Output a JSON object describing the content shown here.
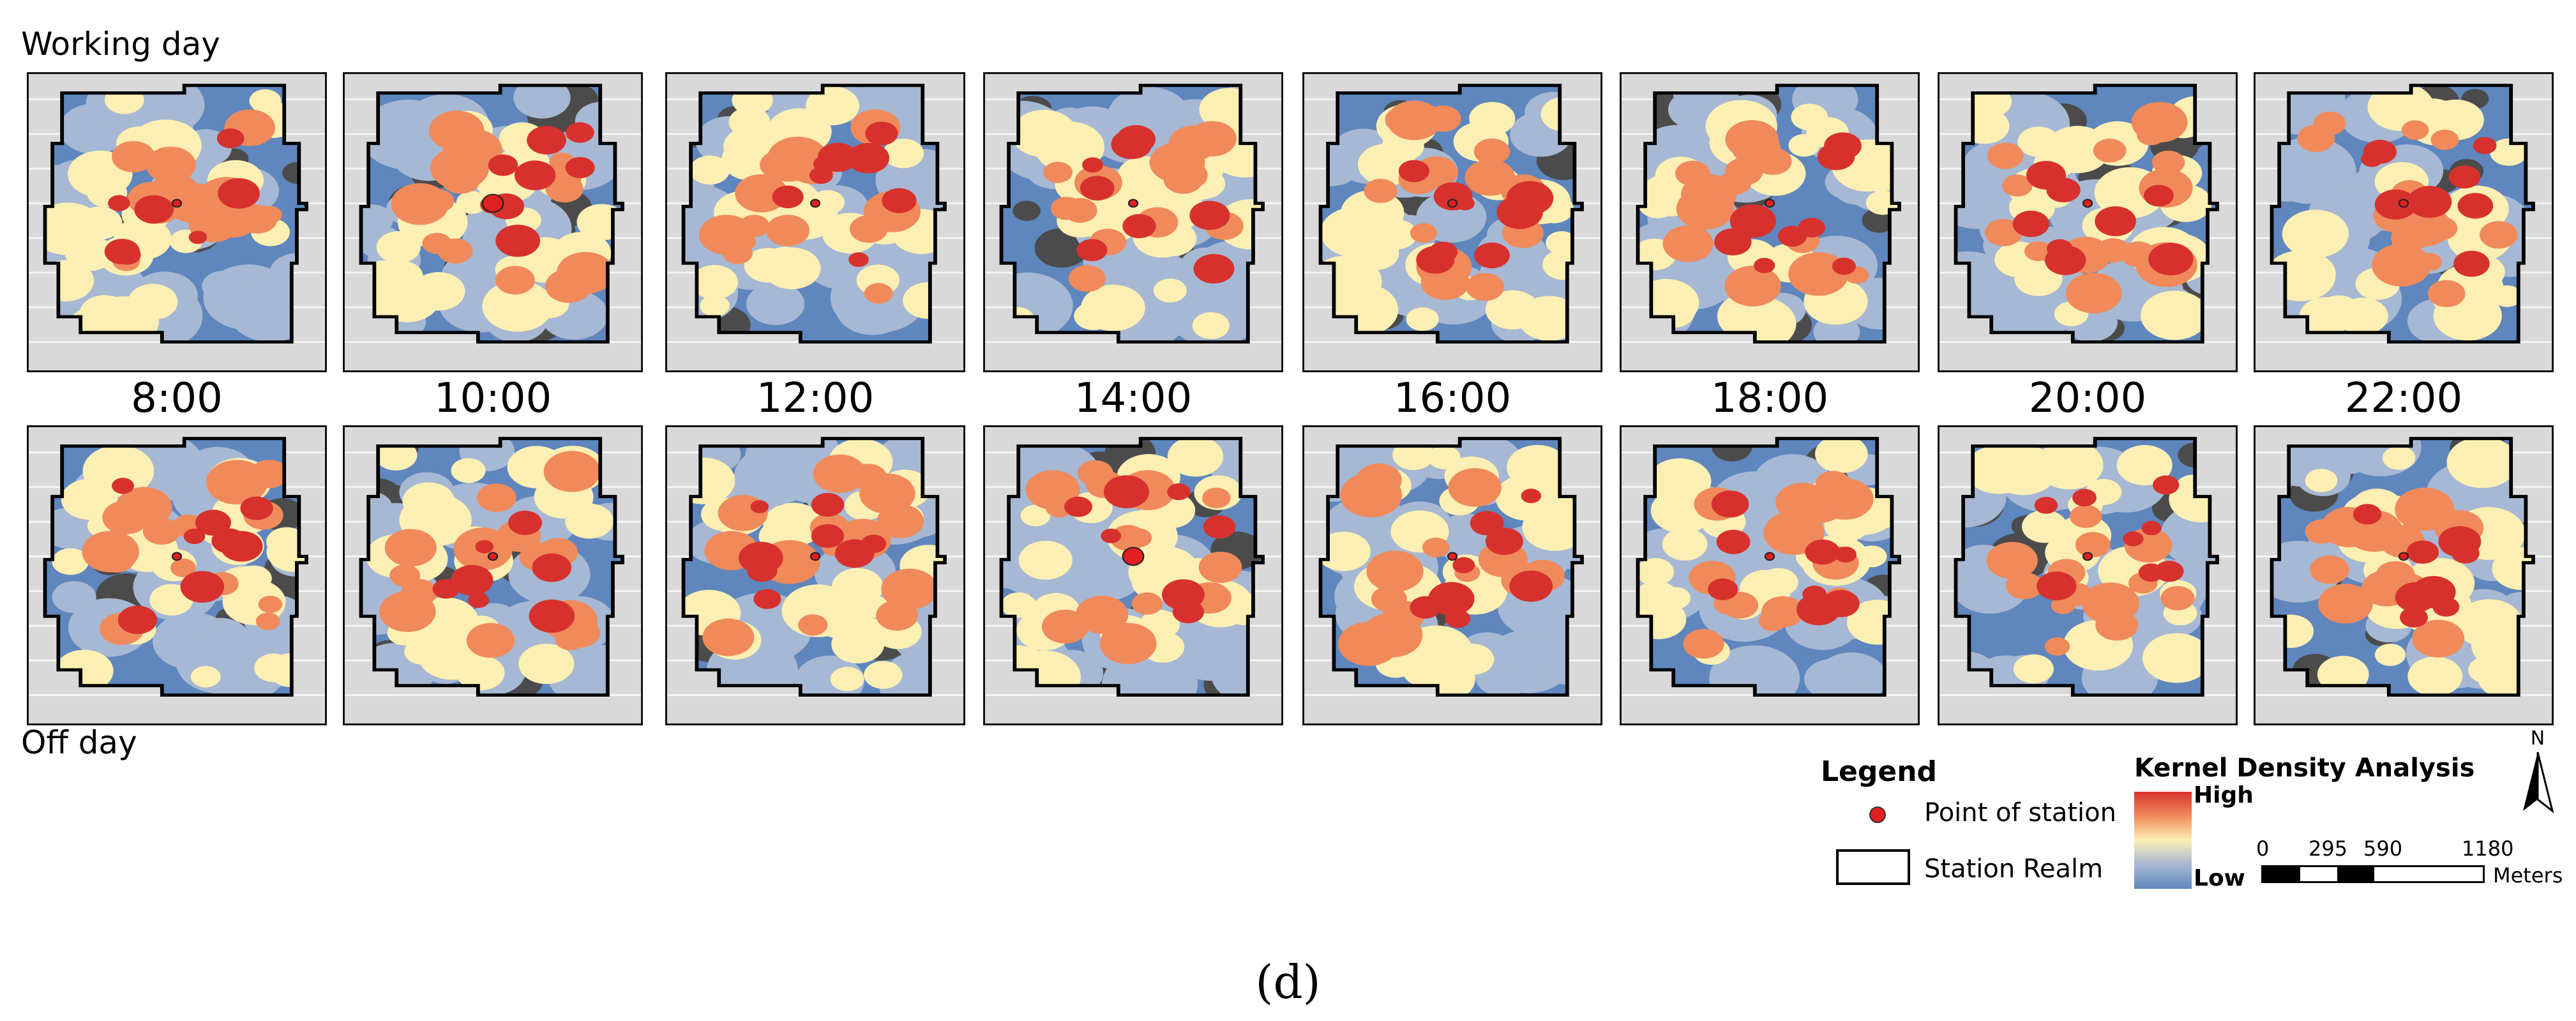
{
  "labels": {
    "working_day": "Working day",
    "off_day": "Off day"
  },
  "times": [
    "8:00",
    "10:00",
    "12:00",
    "14:00",
    "16:00",
    "18:00",
    "20:00",
    "22:00"
  ],
  "legend": {
    "title": "Legend",
    "point_label": "Point of station",
    "realm_label": "Station Realm"
  },
  "kernel_density": {
    "title": "Kernel Density Analysis",
    "high": "High",
    "low": "Low"
  },
  "scale_bar": {
    "ticks": [
      "0",
      "295",
      "590",
      "1180"
    ],
    "unit": "Meters"
  },
  "north_label": "N",
  "caption": "(d)",
  "colors": {
    "high": "#d7312e",
    "mid_high": "#f08a5b",
    "mid": "#fcefb3",
    "mid_low": "#a6b8d3",
    "low": "#5f86bd",
    "dark": "#4b4b4b",
    "background": "#d9d9d9",
    "station_point": "#e02020"
  }
}
